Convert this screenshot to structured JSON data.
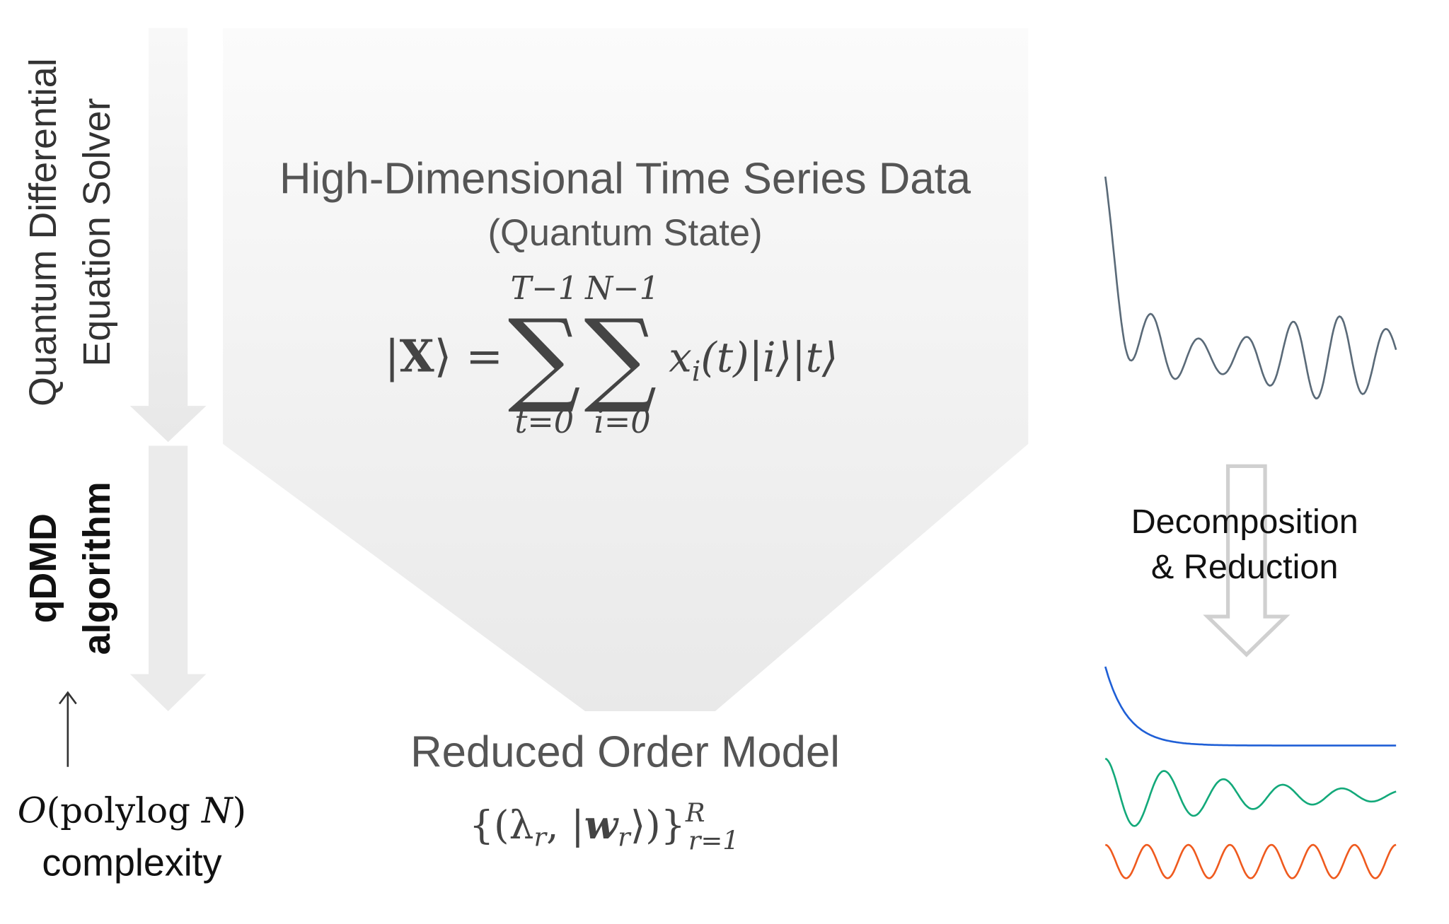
{
  "left": {
    "solver_label": [
      "Quantum Differential",
      "Equation Solver"
    ],
    "algorithm_label": [
      "qDMD",
      "algorithm"
    ],
    "complexity": {
      "formula": [
        "O",
        "(polylog ",
        "N",
        ")"
      ],
      "label": "complexity"
    }
  },
  "center": {
    "title": "High-Dimensional Time Series Data",
    "subtitle": "(Quantum State)",
    "formula": {
      "lhs": [
        "|",
        "X",
        "⟩ ="
      ],
      "sum_sign": "∑",
      "sums": [
        {
          "top": "T−1",
          "bottom": "t=0"
        },
        {
          "top": "N−1",
          "bottom": "i=0"
        }
      ],
      "term": [
        "x",
        "i",
        "(t)|i⟩|t⟩"
      ]
    },
    "output_title": "Reduced Order Model",
    "output_formula": [
      "{(λ",
      "r",
      ", |",
      "w",
      "r",
      "⟩)}",
      "R",
      "r=1"
    ]
  },
  "right": {
    "step_label": [
      "Decomposition",
      "& Reduction"
    ]
  }
}
